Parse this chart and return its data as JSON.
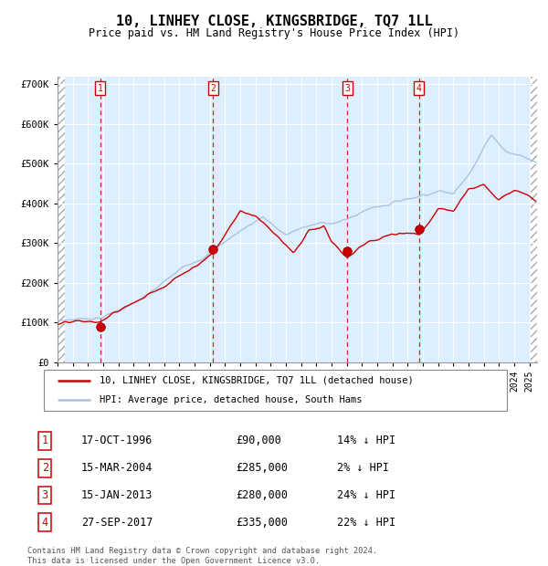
{
  "title": "10, LINHEY CLOSE, KINGSBRIDGE, TQ7 1LL",
  "subtitle": "Price paid vs. HM Land Registry's House Price Index (HPI)",
  "ylim": [
    0,
    720000
  ],
  "yticks": [
    0,
    100000,
    200000,
    300000,
    400000,
    500000,
    600000,
    700000
  ],
  "ytick_labels": [
    "£0",
    "£100K",
    "£200K",
    "£300K",
    "£400K",
    "£500K",
    "£600K",
    "£700K"
  ],
  "xlim_start": 1994.0,
  "xlim_end": 2025.5,
  "hpi_color": "#a8c4e0",
  "price_color": "#cc0000",
  "plot_bg": "#ddeeff",
  "legend_label_price": "10, LINHEY CLOSE, KINGSBRIDGE, TQ7 1LL (detached house)",
  "legend_label_hpi": "HPI: Average price, detached house, South Hams",
  "transactions": [
    {
      "num": 1,
      "date_str": "17-OCT-1996",
      "date_x": 1996.79,
      "price": 90000,
      "pct": "14%",
      "dir": "↓"
    },
    {
      "num": 2,
      "date_str": "15-MAR-2004",
      "date_x": 2004.21,
      "price": 285000,
      "pct": "2%",
      "dir": "↓"
    },
    {
      "num": 3,
      "date_str": "15-JAN-2013",
      "date_x": 2013.04,
      "price": 280000,
      "pct": "24%",
      "dir": "↓"
    },
    {
      "num": 4,
      "date_str": "27-SEP-2017",
      "date_x": 2017.74,
      "price": 335000,
      "pct": "22%",
      "dir": "↓"
    }
  ],
  "footer": "Contains HM Land Registry data © Crown copyright and database right 2024.\nThis data is licensed under the Open Government Licence v3.0."
}
